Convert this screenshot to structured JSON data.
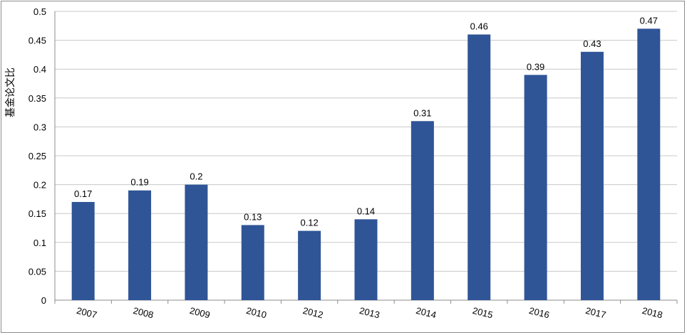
{
  "chart_data": {
    "type": "bar",
    "ylabel": "基金论文比",
    "xlabel": "",
    "title": "",
    "ylim": [
      0,
      0.5
    ],
    "yticks": [
      "0",
      "0.05",
      "0.1",
      "0.15",
      "0.2",
      "0.25",
      "0.3",
      "0.35",
      "0.4",
      "0.45",
      "0.5"
    ],
    "categories": [
      "2007",
      "2008",
      "2009",
      "2010",
      "2012",
      "2013",
      "2014",
      "2015",
      "2016",
      "2017",
      "2018"
    ],
    "values": [
      0.17,
      0.19,
      0.2,
      0.13,
      0.12,
      0.14,
      0.31,
      0.46,
      0.39,
      0.43,
      0.47
    ],
    "data_labels": [
      "0.17",
      "0.19",
      "0.2",
      "0.13",
      "0.12",
      "0.14",
      "0.31",
      "0.46",
      "0.39",
      "0.43",
      "0.47"
    ],
    "bar_color": "#2f5597",
    "grid": true,
    "legend": "none"
  }
}
